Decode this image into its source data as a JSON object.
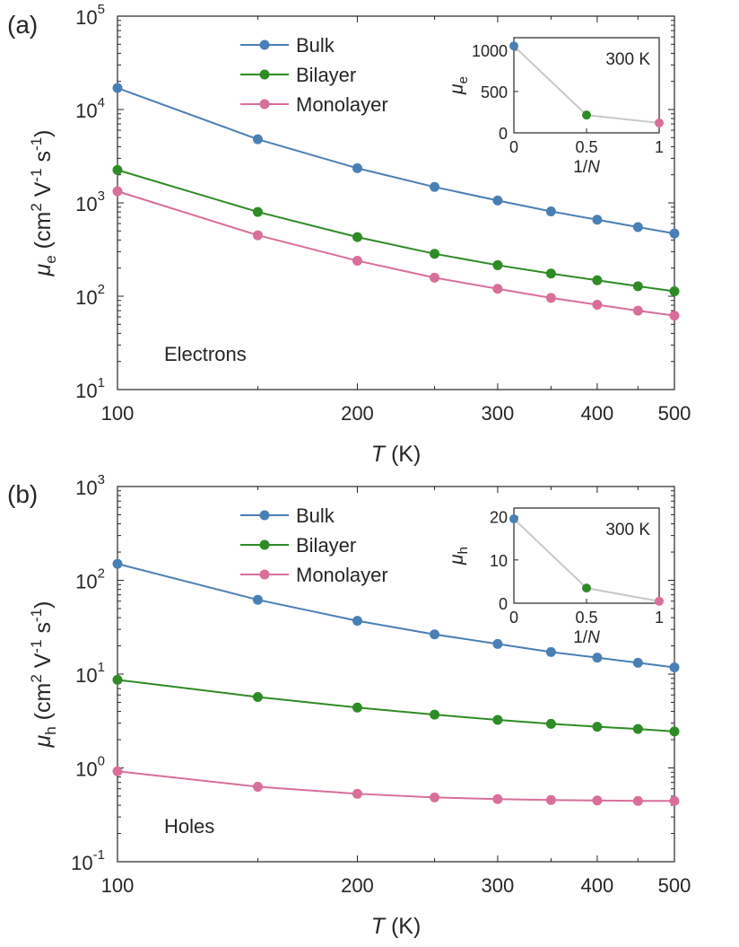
{
  "panel_a_label": "(a)",
  "panel_b_label": "(b)",
  "colors": {
    "bulk": "#4a7fb5",
    "bilayer": "#2e8b25",
    "monolayer": "#d96e9b",
    "inset_line": "#c8c8c8"
  },
  "chart_data": [
    {
      "type": "line",
      "panel": "(a)",
      "xscale": "log",
      "yscale": "log",
      "xlim": [
        100,
        500
      ],
      "ylim": [
        10,
        100000
      ],
      "xlabel_var": "T",
      "xlabel_unit": "(K)",
      "ylabel_var": "μ",
      "ylabel_sub": "e",
      "ylabel_units": {
        "pre": "(cm",
        "p1": "2",
        "mid1": " V",
        "p2": "-1",
        "mid2": " s",
        "p3": "-1",
        "close": ")"
      },
      "xticks": [
        100,
        200,
        300,
        400,
        500
      ],
      "xtick_labels": [
        "100",
        "200",
        "300",
        "400",
        "500"
      ],
      "yticks": [
        10,
        100,
        1000,
        10000,
        100000
      ],
      "ytick_labels": [
        {
          "base": "10",
          "exp": "1"
        },
        {
          "base": "10",
          "exp": "2"
        },
        {
          "base": "10",
          "exp": "3"
        },
        {
          "base": "10",
          "exp": "4"
        },
        {
          "base": "10",
          "exp": "5"
        }
      ],
      "annotation": "Electrons",
      "legend_position": "top-center",
      "x": [
        100,
        150,
        200,
        250,
        300,
        350,
        400,
        450,
        500
      ],
      "series": [
        {
          "key": "bulk",
          "name": "Bulk",
          "values": [
            17000,
            4800,
            2350,
            1480,
            1060,
            810,
            660,
            550,
            470
          ]
        },
        {
          "key": "bilayer",
          "name": "Bilayer",
          "values": [
            2250,
            800,
            430,
            285,
            215,
            175,
            148,
            128,
            113
          ]
        },
        {
          "key": "monolayer",
          "name": "Monolayer",
          "values": [
            1330,
            450,
            240,
            158,
            120,
            96,
            81,
            70,
            62
          ]
        }
      ],
      "inset": {
        "type": "line",
        "xlabel_pre": "1/",
        "xlabel_var": "N",
        "ylabel_var": "μ",
        "ylabel_sub": "e",
        "annotation": "300 K",
        "xlim": [
          0,
          1
        ],
        "ylim": [
          0,
          1150
        ],
        "xticks": [
          0,
          0.5,
          1
        ],
        "xtick_labels": [
          "0",
          "0.5",
          "1"
        ],
        "yticks": [
          0,
          500,
          1000
        ],
        "ytick_labels": [
          "0",
          "500",
          "1000"
        ],
        "x": [
          0,
          0.5,
          1
        ],
        "values": [
          1050,
          215,
          120
        ],
        "point_series": [
          "bulk",
          "bilayer",
          "monolayer"
        ]
      }
    },
    {
      "type": "line",
      "panel": "(b)",
      "xscale": "log",
      "yscale": "log",
      "xlim": [
        100,
        500
      ],
      "ylim": [
        0.1,
        1000
      ],
      "xlabel_var": "T",
      "xlabel_unit": "(K)",
      "ylabel_var": "μ",
      "ylabel_sub": "h",
      "ylabel_units": {
        "pre": "(cm",
        "p1": "2",
        "mid1": " V",
        "p2": "-1",
        "mid2": " s",
        "p3": "-1",
        "close": ")"
      },
      "xticks": [
        100,
        200,
        300,
        400,
        500
      ],
      "xtick_labels": [
        "100",
        "200",
        "300",
        "400",
        "500"
      ],
      "yticks": [
        0.1,
        1,
        10,
        100,
        1000
      ],
      "ytick_labels": [
        {
          "base": "10",
          "exp": "-1"
        },
        {
          "base": "10",
          "exp": "0"
        },
        {
          "base": "10",
          "exp": "1"
        },
        {
          "base": "10",
          "exp": "2"
        },
        {
          "base": "10",
          "exp": "3"
        }
      ],
      "annotation": "Holes",
      "legend_position": "top-center",
      "x": [
        100,
        150,
        200,
        250,
        300,
        350,
        400,
        450,
        500
      ],
      "series": [
        {
          "key": "bulk",
          "name": "Bulk",
          "values": [
            150,
            62,
            37,
            26.5,
            21,
            17.2,
            15,
            13.2,
            11.8
          ]
        },
        {
          "key": "bilayer",
          "name": "Bilayer",
          "values": [
            8.7,
            5.7,
            4.4,
            3.7,
            3.25,
            2.95,
            2.75,
            2.6,
            2.45
          ]
        },
        {
          "key": "monolayer",
          "name": "Monolayer",
          "values": [
            0.92,
            0.63,
            0.53,
            0.485,
            0.465,
            0.455,
            0.45,
            0.445,
            0.445
          ]
        }
      ],
      "inset": {
        "type": "line",
        "xlabel_pre": "1/",
        "xlabel_var": "N",
        "ylabel_var": "μ",
        "ylabel_sub": "h",
        "annotation": "300 K",
        "xlim": [
          0,
          1
        ],
        "ylim": [
          0,
          22
        ],
        "xticks": [
          0,
          0.5,
          1
        ],
        "xtick_labels": [
          "0",
          "0.5",
          "1"
        ],
        "yticks": [
          0,
          10,
          20
        ],
        "ytick_labels": [
          "0",
          "10",
          "20"
        ],
        "x": [
          0,
          0.5,
          1
        ],
        "values": [
          19.5,
          3.5,
          0.45
        ],
        "point_series": [
          "bulk",
          "bilayer",
          "monolayer"
        ]
      }
    }
  ]
}
